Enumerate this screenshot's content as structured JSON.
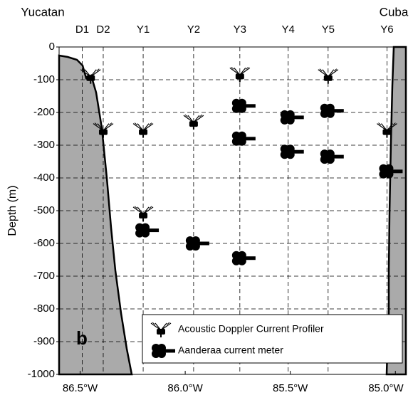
{
  "chart_data": {
    "type": "scatter",
    "ylabel": "Depth (m)",
    "panel_label": "b",
    "left_label": "Yucatan",
    "right_label": "Cuba",
    "moorings": {
      "names": [
        "D1",
        "D2",
        "Y1",
        "Y2",
        "Y3",
        "Y4",
        "Y5",
        "Y6"
      ],
      "x": [
        86.49,
        86.39,
        86.2,
        85.96,
        85.74,
        85.51,
        85.32,
        85.04
      ]
    },
    "series": [
      {
        "name": "Acoustic Doppler Current Profiler",
        "color": "#000000",
        "x": [
          86.45,
          86.39,
          86.2,
          86.2,
          85.96,
          85.74,
          85.32,
          85.04
        ],
        "values": [
          -95,
          -260,
          -260,
          -515,
          -235,
          -90,
          -95,
          -260
        ]
      },
      {
        "name": "Aanderaa current meter",
        "color": "#000000",
        "x": [
          86.2,
          85.96,
          85.74,
          85.74,
          85.74,
          85.51,
          85.51,
          85.32,
          85.32,
          85.04
        ],
        "values": [
          -560,
          -600,
          -180,
          -280,
          -645,
          -215,
          -320,
          -195,
          -335,
          -380
        ]
      }
    ],
    "xlim": [
      86.6,
      84.95
    ],
    "xticks": [
      {
        "value": 86.5,
        "label": "86.5°W"
      },
      {
        "value": 86.0,
        "label": "86.0°W"
      },
      {
        "value": 85.5,
        "label": "85.5°W"
      },
      {
        "value": 85.0,
        "label": "85.0°W"
      }
    ],
    "ylim": [
      -1000,
      0
    ],
    "yticks": [
      0,
      -100,
      -200,
      -300,
      -400,
      -500,
      -600,
      -700,
      -800,
      -900,
      -1000
    ],
    "grid": true
  }
}
